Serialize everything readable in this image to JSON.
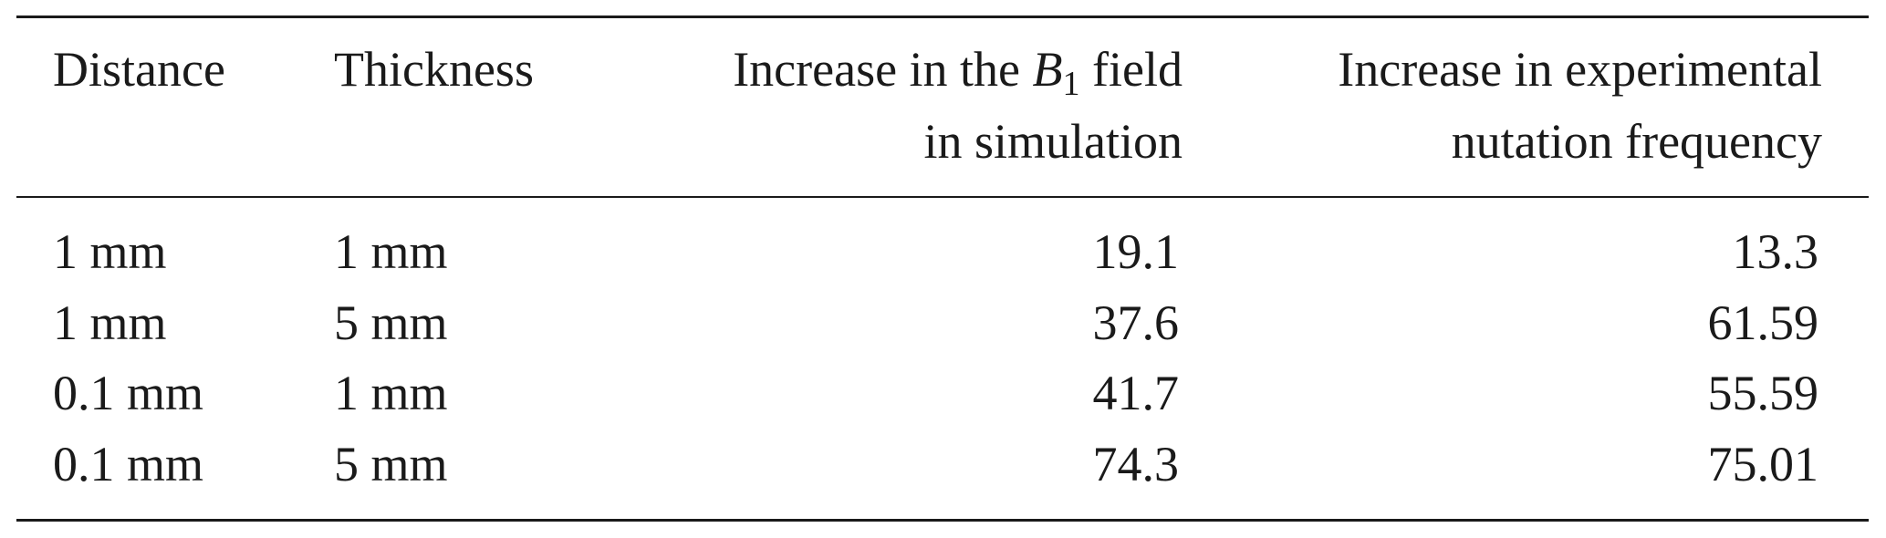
{
  "table": {
    "headers": {
      "distance": "Distance",
      "thickness": "Thickness",
      "b1_field_line1_before": "Increase in the",
      "b1_symbol": "B",
      "b1_subscript": "1",
      "b1_field_line1_after": "field",
      "b1_field_line2": "in simulation",
      "nutation_line1": "Increase in experimental",
      "nutation_line2": "nutation frequency"
    },
    "percent_sign": "%",
    "rows": [
      {
        "distance": "1 mm",
        "thickness": "1 mm",
        "b1_increase": "19.1",
        "nutation_increase": "13.3"
      },
      {
        "distance": "1 mm",
        "thickness": "5 mm",
        "b1_increase": "37.6",
        "nutation_increase": "61.59"
      },
      {
        "distance": "0.1 mm",
        "thickness": "1 mm",
        "b1_increase": "41.7",
        "nutation_increase": "55.59"
      },
      {
        "distance": "0.1 mm",
        "thickness": "5 mm",
        "b1_increase": "74.3",
        "nutation_increase": "75.01"
      }
    ]
  }
}
